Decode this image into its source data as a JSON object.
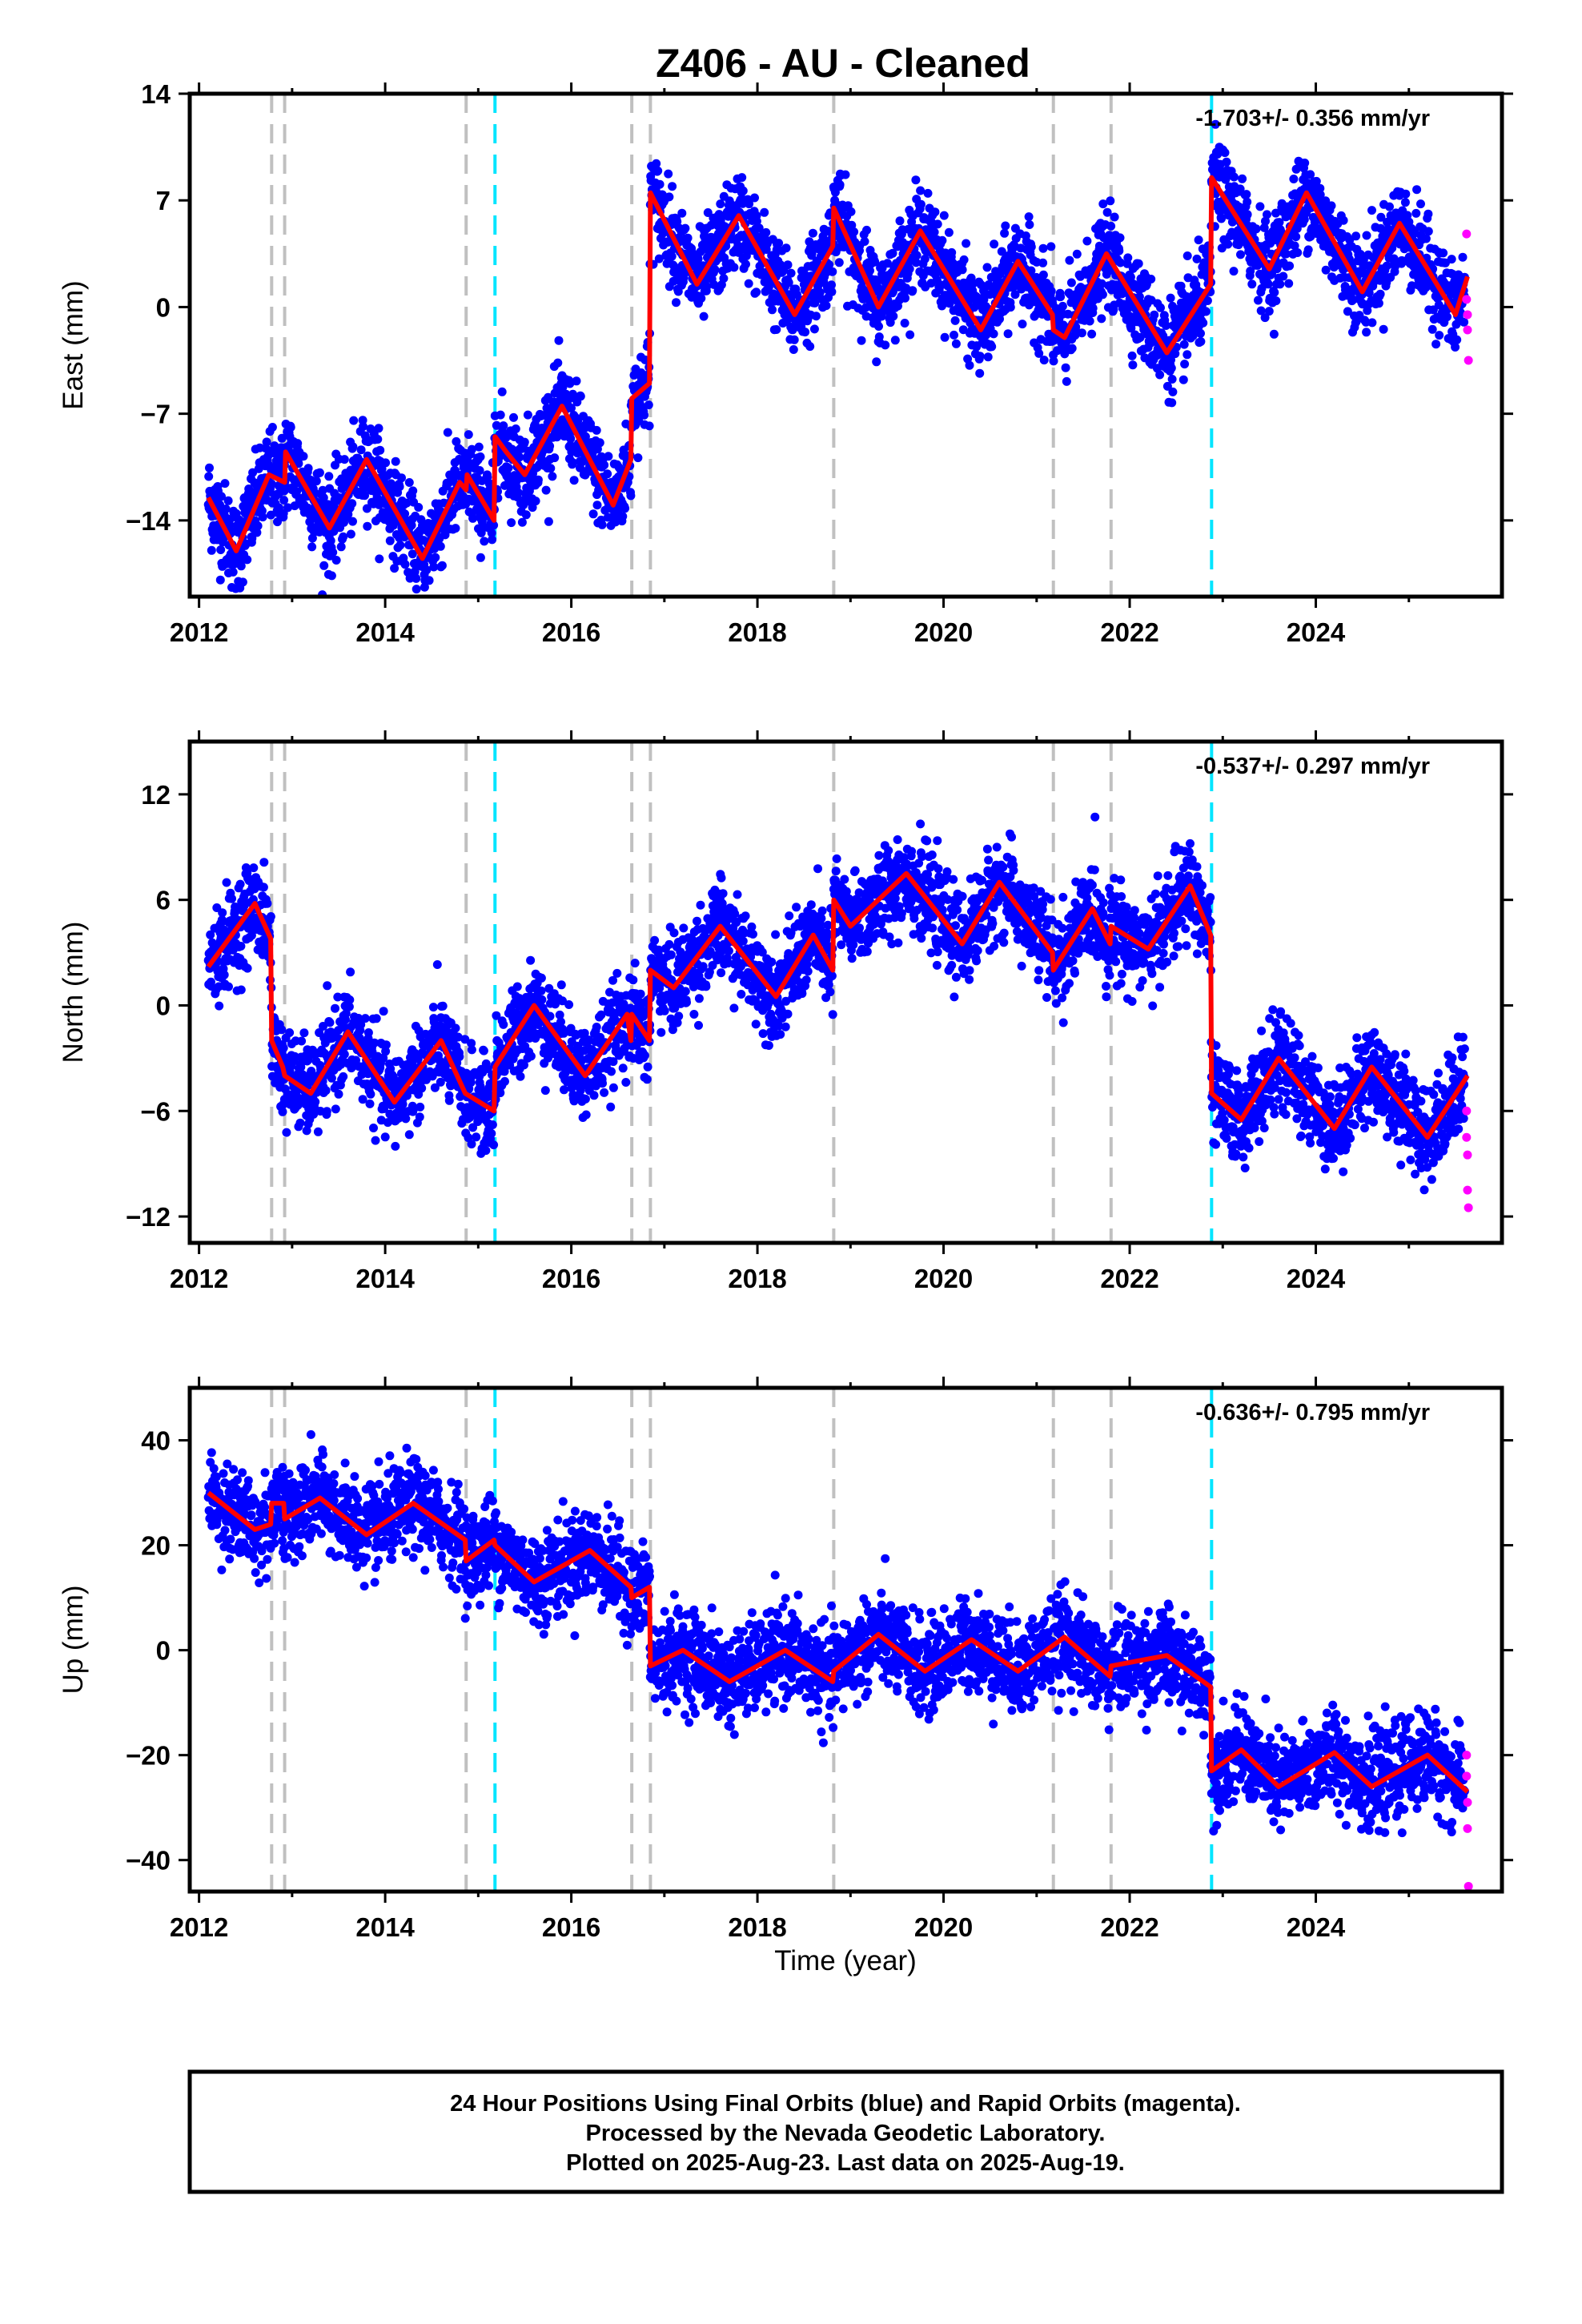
{
  "chart_data": {
    "title": "Z406  - AU - Cleaned",
    "type": "scatter",
    "x_unit": "decimal year",
    "xlim": [
      2011.9,
      2026.0
    ],
    "x_ticks": [
      2012,
      2014,
      2016,
      2018,
      2020,
      2022,
      2024
    ],
    "xlabel": "Time (year)",
    "gray_dashed_lines": [
      2012.78,
      2012.92,
      2014.87,
      2016.65,
      2016.85,
      2018.82,
      2021.18,
      2021.8
    ],
    "cyan_dashed_lines": [
      2015.18,
      2022.88
    ],
    "colors": {
      "final_orbits": "#0000ff",
      "rapid_orbits": "#ff00ff",
      "model": "#ff0000",
      "gray_line": "#c0c0c0",
      "cyan_line": "#00e5ff"
    },
    "panels": [
      {
        "ylabel": "East (mm)",
        "ylim": [
          -19,
          14
        ],
        "y_ticks": [
          14,
          7,
          0,
          -7,
          -14
        ],
        "y_tick_labels": [
          "14",
          "7",
          "0",
          "−7",
          "−14"
        ],
        "rate_label": "-1.703+/- 0.356 mm/yr",
        "model": [
          [
            2012.1,
            -12.5
          ],
          [
            2012.4,
            -16
          ],
          [
            2012.75,
            -11
          ],
          [
            2012.92,
            -11.5
          ],
          [
            2012.93,
            -9.5
          ],
          [
            2013.4,
            -14.5
          ],
          [
            2013.8,
            -10
          ],
          [
            2014.4,
            -16.5
          ],
          [
            2014.8,
            -11.5
          ],
          [
            2014.87,
            -12
          ],
          [
            2014.88,
            -11
          ],
          [
            2015.17,
            -14
          ],
          [
            2015.18,
            -8.5
          ],
          [
            2015.3,
            -9.5
          ],
          [
            2015.5,
            -11
          ],
          [
            2015.9,
            -6.5
          ],
          [
            2016.45,
            -13
          ],
          [
            2016.64,
            -10
          ],
          [
            2016.65,
            -6
          ],
          [
            2016.84,
            -5
          ],
          [
            2016.85,
            7.5
          ],
          [
            2017.35,
            1.5
          ],
          [
            2017.8,
            6
          ],
          [
            2018.4,
            -0.5
          ],
          [
            2018.81,
            4
          ],
          [
            2018.82,
            6.5
          ],
          [
            2019.3,
            0
          ],
          [
            2019.75,
            5
          ],
          [
            2020.4,
            -1.5
          ],
          [
            2020.8,
            3
          ],
          [
            2021.17,
            -0.5
          ],
          [
            2021.18,
            -1.5
          ],
          [
            2021.3,
            -2
          ],
          [
            2021.75,
            3.5
          ],
          [
            2022.4,
            -3
          ],
          [
            2022.87,
            1.5
          ],
          [
            2022.88,
            8.5
          ],
          [
            2023.5,
            2.5
          ],
          [
            2023.9,
            7.5
          ],
          [
            2024.5,
            1
          ],
          [
            2024.9,
            5.5
          ],
          [
            2025.5,
            -0.5
          ],
          [
            2025.63,
            2
          ]
        ],
        "rapid": [
          [
            2025.62,
            4.8
          ],
          [
            2025.62,
            0.5
          ],
          [
            2025.63,
            -0.5
          ],
          [
            2025.63,
            -1.5
          ],
          [
            2025.64,
            -3.5
          ]
        ]
      },
      {
        "ylabel": "North (mm)",
        "ylim": [
          -13.5,
          15
        ],
        "y_ticks": [
          12,
          6,
          0,
          -6,
          -12
        ],
        "y_tick_labels": [
          "12",
          "6",
          "0",
          "−6",
          "−12"
        ],
        "rate_label": "-0.537+/- 0.297 mm/yr",
        "model": [
          [
            2012.1,
            2.2
          ],
          [
            2012.6,
            5.8
          ],
          [
            2012.77,
            3.8
          ],
          [
            2012.78,
            -2
          ],
          [
            2012.9,
            -3.5
          ],
          [
            2012.92,
            -4
          ],
          [
            2013.2,
            -5
          ],
          [
            2013.6,
            -1.5
          ],
          [
            2014.1,
            -5.5
          ],
          [
            2014.6,
            -2
          ],
          [
            2014.86,
            -5
          ],
          [
            2015.17,
            -6
          ],
          [
            2015.18,
            -3.5
          ],
          [
            2015.6,
            0
          ],
          [
            2016.15,
            -4
          ],
          [
            2016.6,
            -0.5
          ],
          [
            2016.64,
            -2
          ],
          [
            2016.65,
            -0.5
          ],
          [
            2016.84,
            -2
          ],
          [
            2016.85,
            2
          ],
          [
            2017.1,
            1
          ],
          [
            2017.6,
            4.5
          ],
          [
            2018.2,
            0.5
          ],
          [
            2018.6,
            4
          ],
          [
            2018.81,
            2
          ],
          [
            2018.82,
            6
          ],
          [
            2019.0,
            4.5
          ],
          [
            2019.6,
            7.5
          ],
          [
            2020.2,
            3.5
          ],
          [
            2020.6,
            7
          ],
          [
            2021.17,
            3
          ],
          [
            2021.18,
            2
          ],
          [
            2021.6,
            5.5
          ],
          [
            2021.79,
            3.5
          ],
          [
            2021.8,
            4.5
          ],
          [
            2022.2,
            3.2
          ],
          [
            2022.65,
            6.8
          ],
          [
            2022.87,
            4
          ],
          [
            2022.88,
            -5
          ],
          [
            2023.2,
            -6.5
          ],
          [
            2023.6,
            -3
          ],
          [
            2024.2,
            -7
          ],
          [
            2024.6,
            -3.5
          ],
          [
            2025.2,
            -7.5
          ],
          [
            2025.63,
            -4
          ]
        ],
        "rapid": [
          [
            2025.62,
            -6
          ],
          [
            2025.62,
            -7.5
          ],
          [
            2025.63,
            -8.5
          ],
          [
            2025.63,
            -10.5
          ],
          [
            2025.64,
            -11.5
          ]
        ]
      },
      {
        "ylabel": "Up (mm)",
        "ylim": [
          -46,
          50
        ],
        "y_ticks": [
          40,
          20,
          0,
          -20,
          -40
        ],
        "y_tick_labels": [
          "40",
          "20",
          "0",
          "−20",
          "−40"
        ],
        "rate_label": "-0.636+/- 0.795 mm/yr",
        "model": [
          [
            2012.1,
            30
          ],
          [
            2012.6,
            23
          ],
          [
            2012.77,
            24
          ],
          [
            2012.78,
            28
          ],
          [
            2012.91,
            28
          ],
          [
            2012.92,
            25
          ],
          [
            2013.3,
            29
          ],
          [
            2013.8,
            22
          ],
          [
            2014.3,
            28
          ],
          [
            2014.86,
            21
          ],
          [
            2014.87,
            17
          ],
          [
            2015.17,
            21
          ],
          [
            2015.18,
            20
          ],
          [
            2015.6,
            13
          ],
          [
            2016.2,
            19
          ],
          [
            2016.64,
            12
          ],
          [
            2016.65,
            10
          ],
          [
            2016.84,
            12
          ],
          [
            2016.85,
            -3
          ],
          [
            2017.2,
            0
          ],
          [
            2017.7,
            -6
          ],
          [
            2018.3,
            0
          ],
          [
            2018.81,
            -6
          ],
          [
            2018.82,
            -4
          ],
          [
            2019.3,
            3
          ],
          [
            2019.8,
            -4
          ],
          [
            2020.3,
            2
          ],
          [
            2020.8,
            -4
          ],
          [
            2021.3,
            2.5
          ],
          [
            2021.79,
            -5
          ],
          [
            2021.8,
            -3
          ],
          [
            2022.4,
            -1
          ],
          [
            2022.87,
            -7
          ],
          [
            2022.88,
            -23
          ],
          [
            2023.2,
            -19
          ],
          [
            2023.6,
            -26
          ],
          [
            2024.2,
            -19.5
          ],
          [
            2024.6,
            -26
          ],
          [
            2025.2,
            -20
          ],
          [
            2025.63,
            -27
          ]
        ],
        "rapid": [
          [
            2025.62,
            -20
          ],
          [
            2025.62,
            -24
          ],
          [
            2025.63,
            -29
          ],
          [
            2025.63,
            -34
          ],
          [
            2025.64,
            -45
          ]
        ]
      }
    ]
  },
  "caption": {
    "line1": "24 Hour Positions Using Final Orbits (blue) and Rapid Orbits (magenta).",
    "line2": "Processed by the Nevada Geodetic Laboratory.",
    "line3": "Plotted on 2025-Aug-23. Last data on 2025-Aug-19."
  }
}
